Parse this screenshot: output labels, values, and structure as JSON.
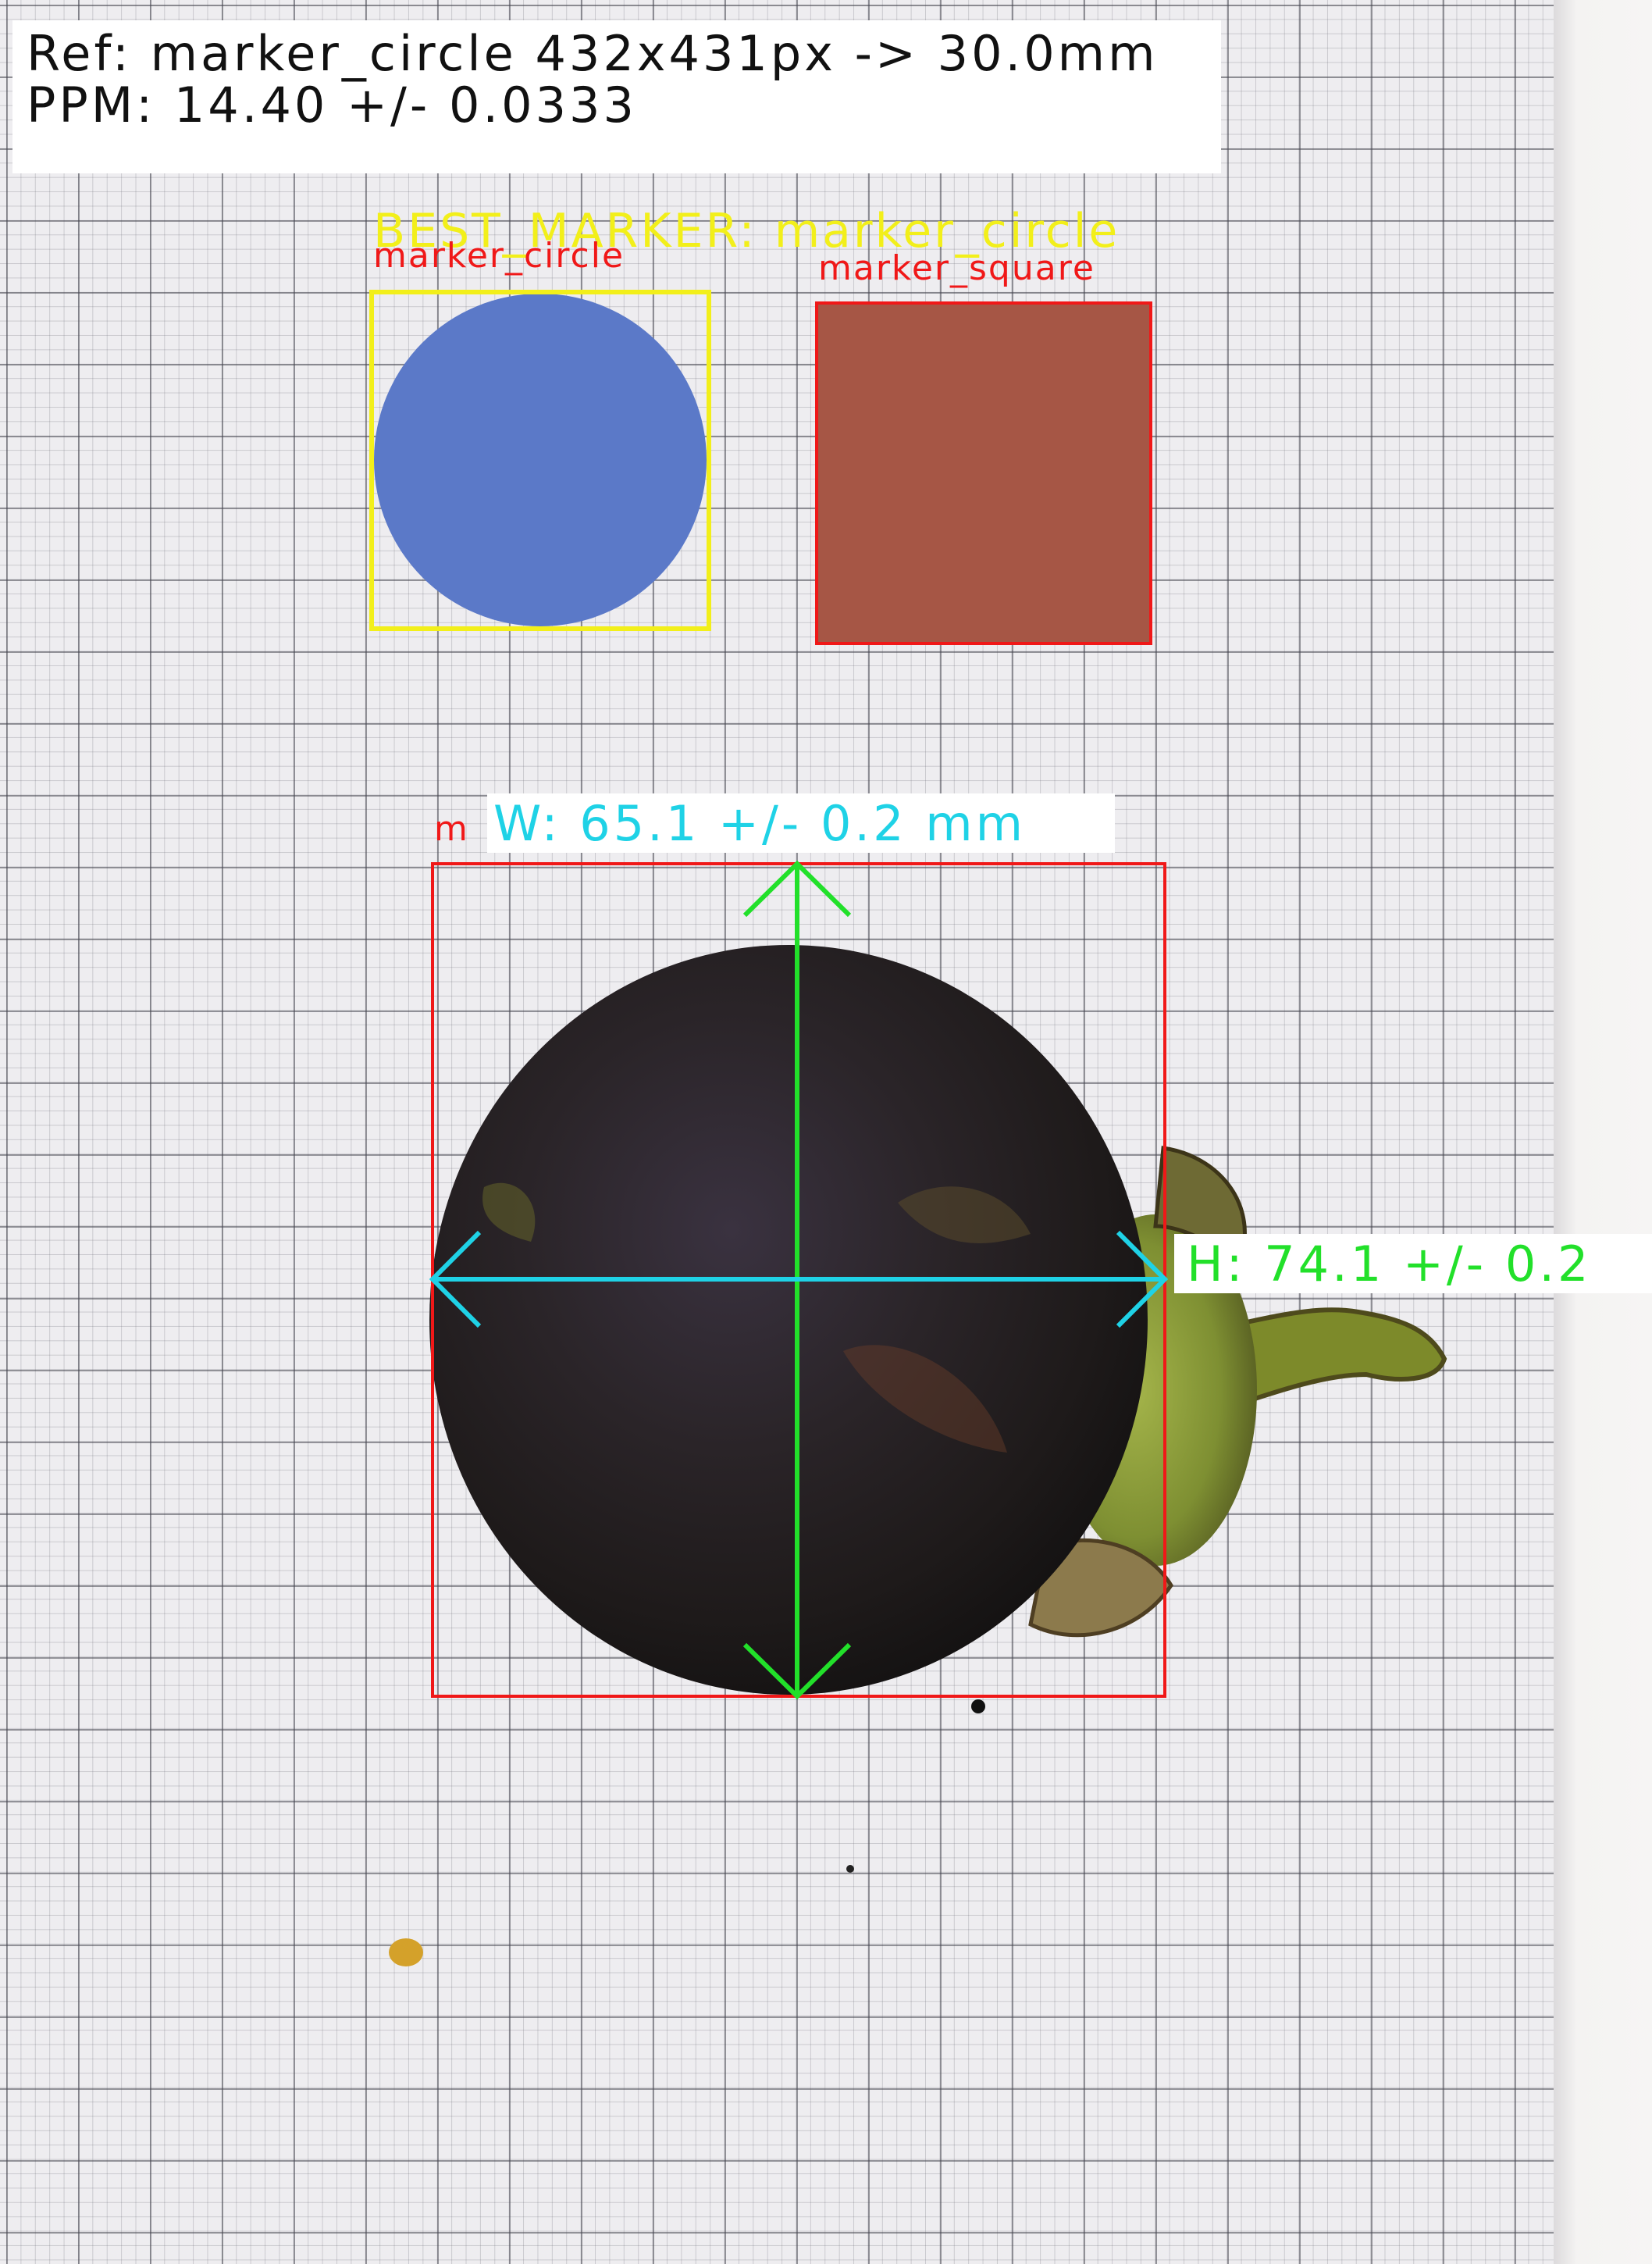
{
  "info": {
    "ref_line": "Ref: marker_circle 432x431px -> 30.0mm",
    "ppm_line": "PPM: 14.40 +/- 0.0333"
  },
  "best_marker_label": "BEST_MARKER: marker_circle",
  "markers": {
    "circle": {
      "label": "marker_circle",
      "fill": "#5b79c8",
      "box_color": "#f2ef1a"
    },
    "square": {
      "label": "marker_square",
      "fill": "#a65645",
      "box_color": "#f01818"
    }
  },
  "object": {
    "label_fragment": "m",
    "box_color": "#f01818"
  },
  "measurements": {
    "width_label": "W: 65.1 +/- 0.2 mm",
    "width_color": "#1fd2e6",
    "height_label": "H: 74.1 +/- 0.2",
    "height_color": "#22e02a"
  }
}
